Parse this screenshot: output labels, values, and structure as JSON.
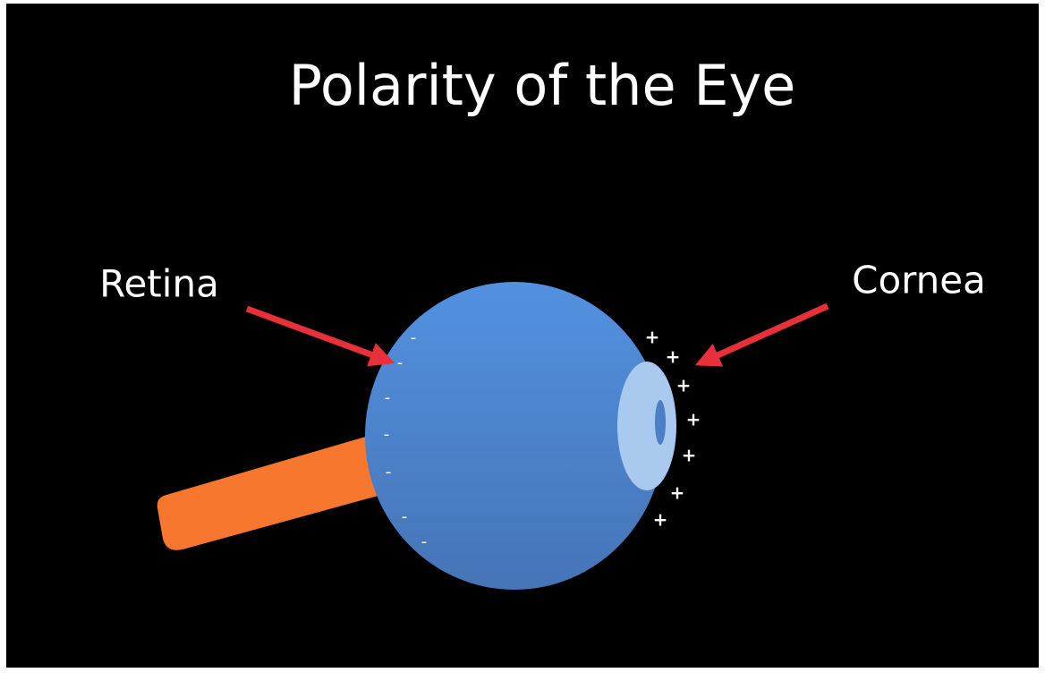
{
  "title": "Polarity of the Eye",
  "labels": {
    "retina": "Retina",
    "cornea": "Cornea"
  },
  "charges": {
    "negative": [
      "-",
      "-",
      "-",
      "-",
      "-",
      "-",
      "-"
    ],
    "positive": [
      "+",
      "+",
      "+",
      "+",
      "+",
      "+",
      "+"
    ]
  }
}
